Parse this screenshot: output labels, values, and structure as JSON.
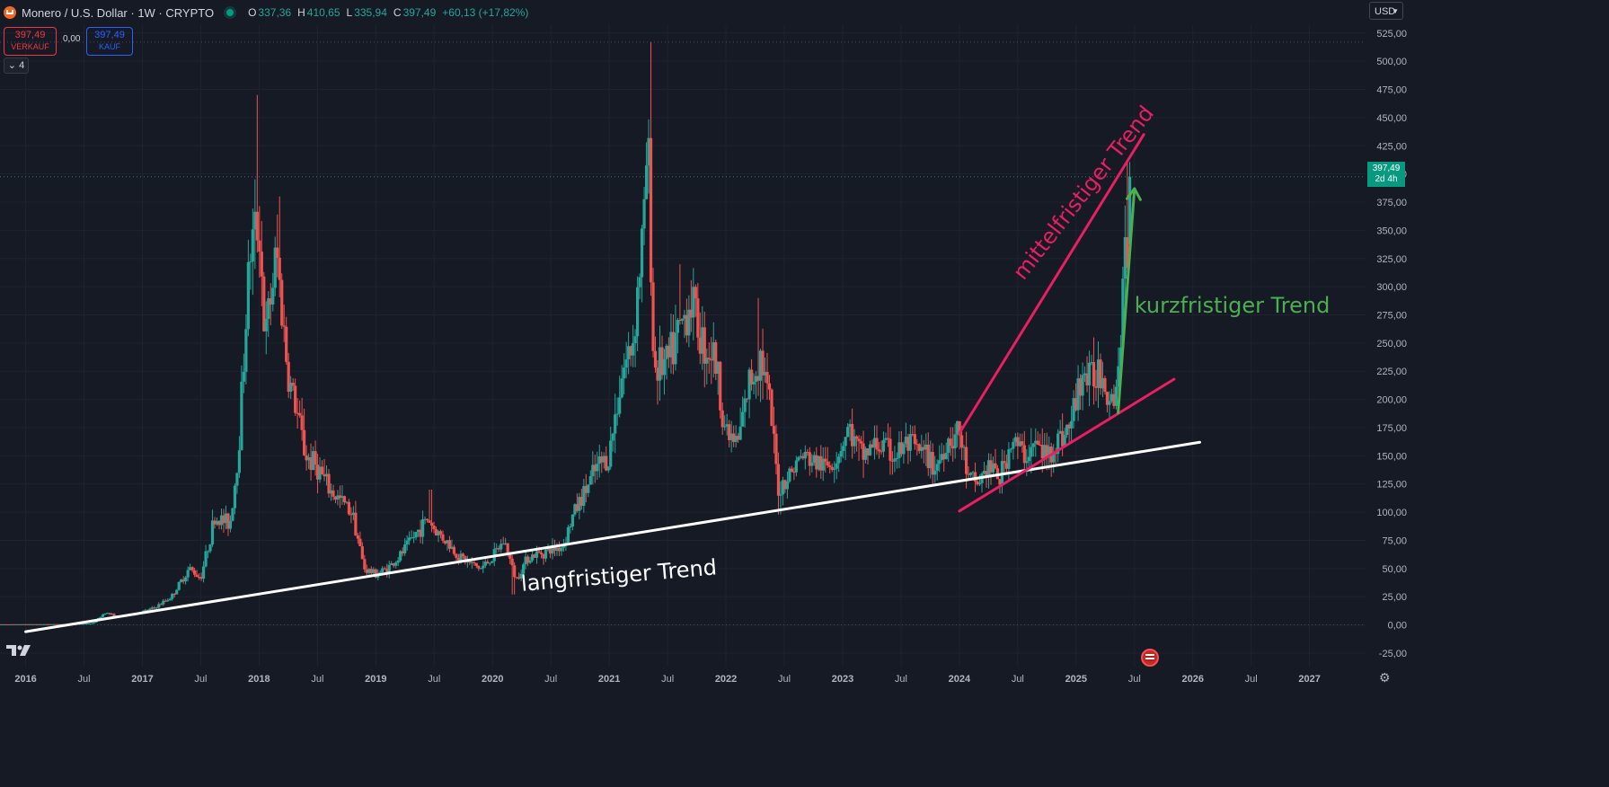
{
  "header": {
    "title": "Monero / U.S. Dollar · 1W · CRYPTO",
    "ohlc": [
      {
        "k": "O",
        "v": "337,36"
      },
      {
        "k": "H",
        "v": "410,65"
      },
      {
        "k": "L",
        "v": "335,94"
      },
      {
        "k": "C",
        "v": "397,49"
      },
      {
        "k": "",
        "v": "+60,13 (+17,82%)"
      }
    ]
  },
  "trade": {
    "sell_price": "397,49",
    "sell_label": "VERKAUF",
    "spread": "0,00",
    "buy_price": "397,49",
    "buy_label": "KAUF"
  },
  "indicators_toggle": "4",
  "currency": "USD",
  "price_label": {
    "price": "397,49",
    "countdown": "2d 4h"
  },
  "colors": {
    "background": "#161a25",
    "up": "#26a69a",
    "down": "#ef5350",
    "grid": "#1f2330",
    "axis_text": "#b2b5be",
    "price_label": "#089981",
    "long_trend": "#ffffff",
    "mid_trend": "#e91e63",
    "short_trend": "#4caf50"
  },
  "icons": [
    "tradingview-logo-icon",
    "settings-gear-icon",
    "us-flag-icon",
    "monero-logo-icon"
  ],
  "chart_data": {
    "type": "candlestick",
    "title": "Monero / U.S. Dollar · 1W · CRYPTO",
    "y_axis": {
      "ticks": [
        "525,00",
        "500,00",
        "475,00",
        "450,00",
        "425,00",
        "400,00",
        "375,00",
        "350,00",
        "325,00",
        "300,00",
        "275,00",
        "250,00",
        "225,00",
        "200,00",
        "175,00",
        "150,00",
        "125,00",
        "100,00",
        "75,00",
        "50,00",
        "25,00",
        "0,00",
        "-25,00"
      ],
      "range": [
        -37,
        532
      ]
    },
    "x_axis": {
      "ticks": [
        {
          "t": 2016.0,
          "label": "2016"
        },
        {
          "t": 2016.5,
          "label": "Jul"
        },
        {
          "t": 2017.0,
          "label": "2017"
        },
        {
          "t": 2017.5,
          "label": "Jul"
        },
        {
          "t": 2018.0,
          "label": "2018"
        },
        {
          "t": 2018.5,
          "label": "Jul"
        },
        {
          "t": 2019.0,
          "label": "2019"
        },
        {
          "t": 2019.5,
          "label": "Jul"
        },
        {
          "t": 2020.0,
          "label": "2020"
        },
        {
          "t": 2020.5,
          "label": "Jul"
        },
        {
          "t": 2021.0,
          "label": "2021"
        },
        {
          "t": 2021.5,
          "label": "Jul"
        },
        {
          "t": 2022.0,
          "label": "2022"
        },
        {
          "t": 2022.5,
          "label": "Jul"
        },
        {
          "t": 2023.0,
          "label": "2023"
        },
        {
          "t": 2023.5,
          "label": "Jul"
        },
        {
          "t": 2024.0,
          "label": "2024"
        },
        {
          "t": 2024.5,
          "label": "Jul"
        },
        {
          "t": 2025.0,
          "label": "2025"
        },
        {
          "t": 2025.5,
          "label": "Jul"
        },
        {
          "t": 2026.0,
          "label": "2026"
        },
        {
          "t": 2026.5,
          "label": "Jul"
        },
        {
          "t": 2027.0,
          "label": "2027"
        }
      ],
      "range": [
        2015.78,
        2027.48
      ]
    },
    "price_anchors": [
      [
        2015.8,
        0.5
      ],
      [
        2016.4,
        0.7
      ],
      [
        2016.58,
        1.5
      ],
      [
        2016.68,
        11
      ],
      [
        2016.8,
        7
      ],
      [
        2016.95,
        10
      ],
      [
        2017.1,
        15
      ],
      [
        2017.25,
        25
      ],
      [
        2017.4,
        50
      ],
      [
        2017.5,
        42
      ],
      [
        2017.62,
        95
      ],
      [
        2017.75,
        90
      ],
      [
        2017.82,
        150
      ],
      [
        2017.92,
        330
      ],
      [
        2018.0,
        360
      ],
      [
        2018.05,
        250
      ],
      [
        2018.15,
        330
      ],
      [
        2018.25,
        220
      ],
      [
        2018.3,
        200
      ],
      [
        2018.4,
        150
      ],
      [
        2018.5,
        140
      ],
      [
        2018.6,
        120
      ],
      [
        2018.7,
        110
      ],
      [
        2018.8,
        100
      ],
      [
        2018.9,
        50
      ],
      [
        2019.0,
        45
      ],
      [
        2019.1,
        50
      ],
      [
        2019.2,
        60
      ],
      [
        2019.3,
        75
      ],
      [
        2019.45,
        95
      ],
      [
        2019.5,
        85
      ],
      [
        2019.6,
        75
      ],
      [
        2019.7,
        62
      ],
      [
        2019.8,
        55
      ],
      [
        2019.9,
        50
      ],
      [
        2020.0,
        60
      ],
      [
        2020.1,
        75
      ],
      [
        2020.2,
        40
      ],
      [
        2020.3,
        60
      ],
      [
        2020.45,
        65
      ],
      [
        2020.6,
        70
      ],
      [
        2020.7,
        100
      ],
      [
        2020.8,
        120
      ],
      [
        2020.9,
        140
      ],
      [
        2021.0,
        150
      ],
      [
        2021.1,
        220
      ],
      [
        2021.2,
        250
      ],
      [
        2021.3,
        360
      ],
      [
        2021.33,
        440
      ],
      [
        2021.38,
        230
      ],
      [
        2021.5,
        230
      ],
      [
        2021.6,
        260
      ],
      [
        2021.7,
        290
      ],
      [
        2021.8,
        250
      ],
      [
        2021.9,
        240
      ],
      [
        2022.0,
        170
      ],
      [
        2022.1,
        160
      ],
      [
        2022.2,
        215
      ],
      [
        2022.3,
        240
      ],
      [
        2022.38,
        190
      ],
      [
        2022.45,
        120
      ],
      [
        2022.55,
        135
      ],
      [
        2022.65,
        150
      ],
      [
        2022.75,
        145
      ],
      [
        2022.85,
        140
      ],
      [
        2022.95,
        150
      ],
      [
        2023.05,
        175
      ],
      [
        2023.15,
        150
      ],
      [
        2023.3,
        160
      ],
      [
        2023.45,
        150
      ],
      [
        2023.55,
        160
      ],
      [
        2023.7,
        150
      ],
      [
        2023.8,
        140
      ],
      [
        2023.9,
        165
      ],
      [
        2024.0,
        170
      ],
      [
        2024.08,
        128
      ],
      [
        2024.15,
        125
      ],
      [
        2024.25,
        140
      ],
      [
        2024.35,
        130
      ],
      [
        2024.45,
        165
      ],
      [
        2024.55,
        150
      ],
      [
        2024.65,
        160
      ],
      [
        2024.75,
        150
      ],
      [
        2024.85,
        165
      ],
      [
        2024.95,
        175
      ],
      [
        2025.0,
        200
      ],
      [
        2025.05,
        225
      ],
      [
        2025.12,
        215
      ],
      [
        2025.2,
        230
      ],
      [
        2025.25,
        215
      ],
      [
        2025.3,
        205
      ],
      [
        2025.35,
        210
      ],
      [
        2025.38,
        260
      ],
      [
        2025.42,
        320
      ],
      [
        2025.45,
        340
      ],
      [
        2025.48,
        337
      ]
    ],
    "spikes": [
      [
        2017.98,
        470
      ],
      [
        2018.17,
        380
      ],
      [
        2021.36,
        517
      ],
      [
        2018.82,
        110
      ],
      [
        2022.46,
        98
      ],
      [
        2020.18,
        27
      ],
      [
        2019.47,
        120
      ],
      [
        2021.6,
        320
      ],
      [
        2022.28,
        290
      ],
      [
        2025.45,
        410
      ]
    ],
    "last_candle": {
      "t": 2025.46,
      "open": 337.36,
      "high": 410.65,
      "low": 335.94,
      "close": 397.49
    },
    "current_price": 397.49,
    "trendlines": [
      {
        "name": "langfristiger Trend",
        "color": "#ffffff",
        "from": [
          2016.0,
          -6
        ],
        "to": [
          2026.06,
          162
        ],
        "label": "langfristiger Trend",
        "label_at": [
          2020.25,
          30
        ],
        "label_angle_deg": -4.9
      },
      {
        "name": "mittelfristiger Trend (upper)",
        "color": "#e91e63",
        "from": [
          2024.0,
          170
        ],
        "to": [
          2025.58,
          435
        ],
        "label": "mittelfristiger Trend",
        "label_at": [
          2024.55,
          305
        ],
        "label_angle_deg": -52
      },
      {
        "name": "mittelfristiger Trend (lower)",
        "color": "#e91e63",
        "from": [
          2024.0,
          101
        ],
        "to": [
          2025.84,
          218
        ]
      },
      {
        "name": "kurzfristiger Trend",
        "color": "#4caf50",
        "from": [
          2025.36,
          188
        ],
        "to": [
          2025.5,
          387
        ],
        "arrow": true,
        "label": "kurzfristiger Trend",
        "label_at": [
          2025.5,
          277
        ]
      }
    ]
  }
}
